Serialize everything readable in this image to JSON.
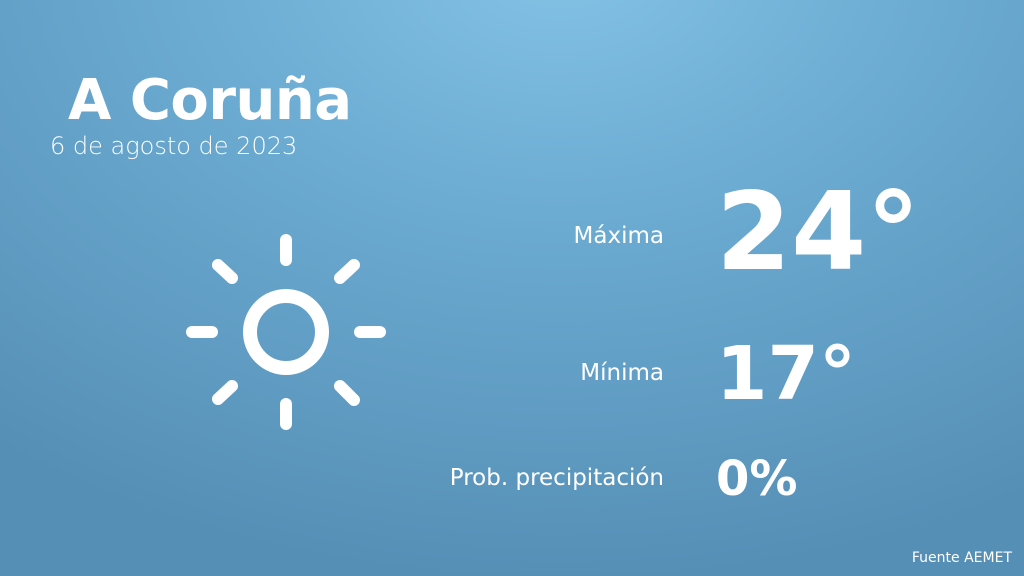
{
  "city": "A Coruña",
  "date": "6 de agosto de 2023",
  "icon": "sun-icon",
  "rows": [
    {
      "label": "Máxima",
      "value": "24°"
    },
    {
      "label": "Mínima",
      "value": "17°"
    },
    {
      "label": "Prob. precipitación",
      "value": "0%"
    }
  ],
  "source": "Fuente AEMET",
  "colors": {
    "background_top": "#84c3e6",
    "background_bottom": "#568fb6",
    "text": "#ffffff"
  }
}
